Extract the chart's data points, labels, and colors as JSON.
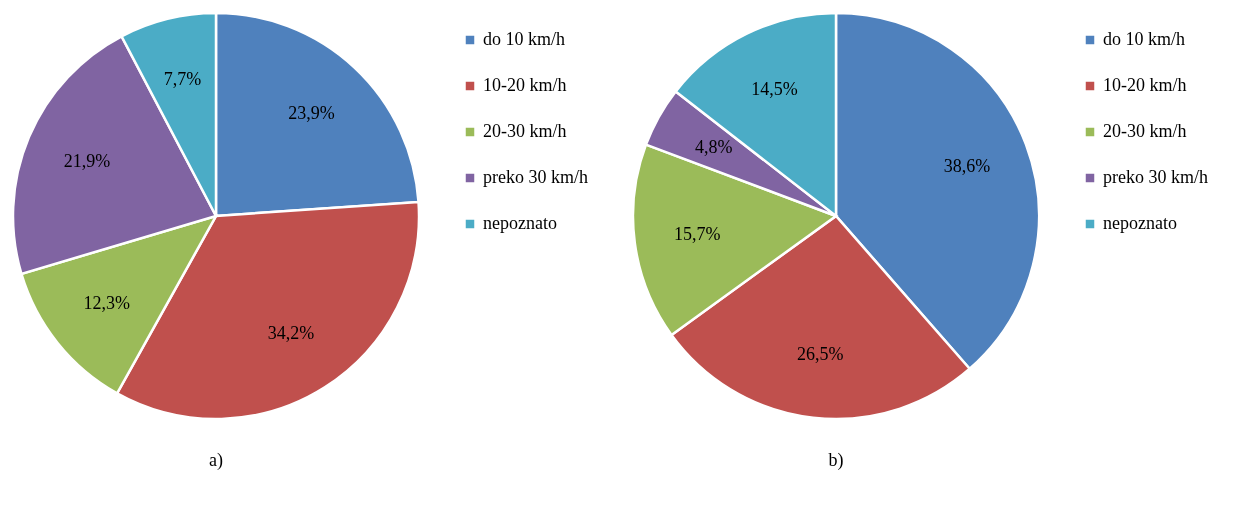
{
  "chart_data": [
    {
      "type": "pie",
      "title": "a)",
      "categories": [
        "do 10 km/h",
        "10-20 km/h",
        "20-30 km/h",
        "preko 30 km/h",
        "nepoznato"
      ],
      "values": [
        23.9,
        34.2,
        12.3,
        21.9,
        7.7
      ],
      "value_labels": [
        "23,9%",
        "34,2%",
        "12,3%",
        "21,9%",
        "7,7%"
      ],
      "colors": [
        "#4f81bd",
        "#c0504d",
        "#9bbb59",
        "#8064a2",
        "#4bacc6"
      ],
      "legend": "right"
    },
    {
      "type": "pie",
      "title": "b)",
      "categories": [
        "do 10 km/h",
        "10-20 km/h",
        "20-30 km/h",
        "preko 30 km/h",
        "nepoznato"
      ],
      "values": [
        38.6,
        26.5,
        15.7,
        4.8,
        14.5
      ],
      "value_labels": [
        "38,6%",
        "26,5%",
        "15,7%",
        "4,8%",
        "14,5%"
      ],
      "colors": [
        "#4f81bd",
        "#c0504d",
        "#9bbb59",
        "#8064a2",
        "#4bacc6"
      ],
      "legend": "right"
    }
  ]
}
